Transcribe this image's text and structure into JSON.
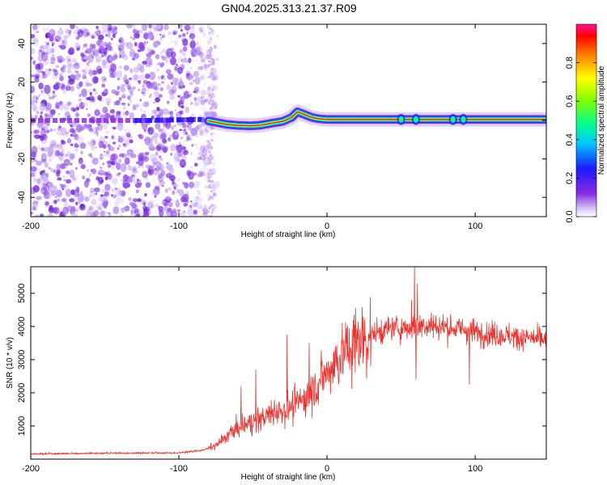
{
  "title": "GN04.2025.313.21.37.R09",
  "chart_data": [
    {
      "type": "heatmap",
      "xlabel": "Height of straight line (km)",
      "ylabel": "Frequency (Hz)",
      "xlim": [
        -200,
        148
      ],
      "ylim": [
        -50,
        50
      ],
      "xticks": [
        -200,
        -100,
        0,
        100
      ],
      "yticks": [
        -40,
        -20,
        0,
        20,
        40
      ],
      "colorbar": {
        "label": "Normalized spectral amplitude",
        "range": [
          0,
          1
        ],
        "ticks": [
          0.0,
          0.2,
          0.4,
          0.6,
          0.8
        ]
      },
      "ridge": [
        {
          "x": -120,
          "y": 0.0
        },
        {
          "x": -100,
          "y": 0.3
        },
        {
          "x": -85,
          "y": 0.5
        },
        {
          "x": -75,
          "y": -1.0
        },
        {
          "x": -68,
          "y": -2.0
        },
        {
          "x": -60,
          "y": -2.6
        },
        {
          "x": -52,
          "y": -2.8
        },
        {
          "x": -45,
          "y": -2.5
        },
        {
          "x": -38,
          "y": -1.5
        },
        {
          "x": -30,
          "y": -0.5
        },
        {
          "x": -24,
          "y": 1.5
        },
        {
          "x": -20,
          "y": 4.5
        },
        {
          "x": -15,
          "y": 3.0
        },
        {
          "x": -10,
          "y": 1.5
        },
        {
          "x": -5,
          "y": 0.8
        },
        {
          "x": 0,
          "y": 0.5
        },
        {
          "x": 20,
          "y": 0.5
        },
        {
          "x": 60,
          "y": 0.5
        },
        {
          "x": 100,
          "y": 0.5
        },
        {
          "x": 148,
          "y": 0.5
        }
      ],
      "noise_region_x": [
        -200,
        -80
      ]
    },
    {
      "type": "line",
      "xlabel": "Height of straight line (km)",
      "ylabel": "SNR (10 * v/v)",
      "xlim": [
        -200,
        148
      ],
      "ylim": [
        0,
        5800
      ],
      "xticks": [
        -200,
        -100,
        0,
        100
      ],
      "yticks": [
        1000,
        2000,
        3000,
        4000,
        5000
      ],
      "series": [
        {
          "name": "SNR",
          "color": "#e8332f",
          "trend": [
            {
              "x": -200,
              "y": 150
            },
            {
              "x": -150,
              "y": 170
            },
            {
              "x": -100,
              "y": 180
            },
            {
              "x": -85,
              "y": 250
            },
            {
              "x": -75,
              "y": 400
            },
            {
              "x": -65,
              "y": 800
            },
            {
              "x": -55,
              "y": 1050
            },
            {
              "x": -45,
              "y": 1200
            },
            {
              "x": -35,
              "y": 1450
            },
            {
              "x": -25,
              "y": 1550
            },
            {
              "x": -15,
              "y": 1850
            },
            {
              "x": -5,
              "y": 2350
            },
            {
              "x": 5,
              "y": 2900
            },
            {
              "x": 15,
              "y": 3350
            },
            {
              "x": 25,
              "y": 3650
            },
            {
              "x": 35,
              "y": 3850
            },
            {
              "x": 45,
              "y": 3950
            },
            {
              "x": 55,
              "y": 3950
            },
            {
              "x": 65,
              "y": 4050
            },
            {
              "x": 75,
              "y": 4000
            },
            {
              "x": 85,
              "y": 3950
            },
            {
              "x": 95,
              "y": 3900
            },
            {
              "x": 105,
              "y": 3800
            },
            {
              "x": 115,
              "y": 3750
            },
            {
              "x": 125,
              "y": 3700
            },
            {
              "x": 135,
              "y": 3650
            },
            {
              "x": 148,
              "y": 3600
            }
          ],
          "spikes": [
            {
              "x": -58,
              "y": 2200
            },
            {
              "x": -48,
              "y": 2700
            },
            {
              "x": -27,
              "y": 3750
            },
            {
              "x": -12,
              "y": 3500
            },
            {
              "x": 57,
              "y": 4800
            },
            {
              "x": 59,
              "y": 5800
            },
            {
              "x": 61,
              "y": 5300
            },
            {
              "x": 60,
              "y": 2400
            },
            {
              "x": 96,
              "y": 2250
            }
          ]
        }
      ]
    }
  ]
}
